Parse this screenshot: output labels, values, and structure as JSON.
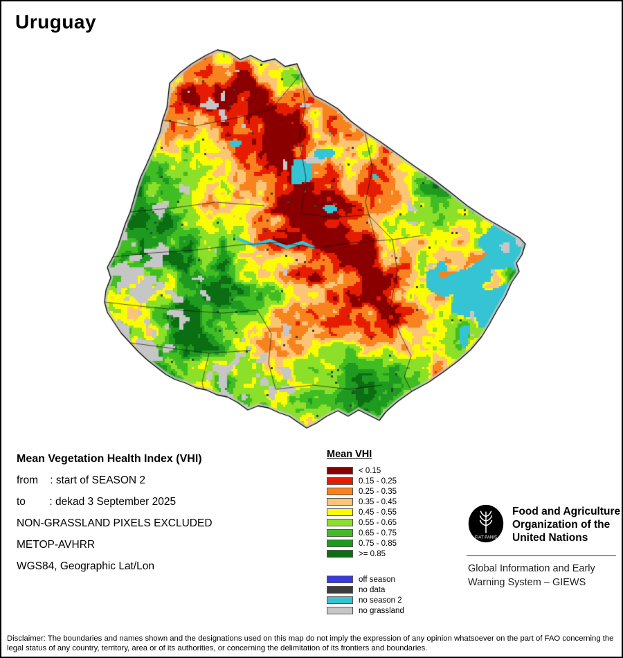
{
  "title": "Uruguay",
  "info": {
    "heading": "Mean Vegetation Health Index (VHI)",
    "lines": [
      "from    : start of SEASON 2",
      "to        : dekad 3 September 2025",
      "NON-GRASSLAND PIXELS EXCLUDED",
      "METOP-AVHRR",
      "WGS84, Geographic Lat/Lon"
    ]
  },
  "legend": {
    "title": "Mean VHI",
    "classes": [
      {
        "label": "< 0.15",
        "color": "#8a0000"
      },
      {
        "label": "0.15 - 0.25",
        "color": "#e61c00"
      },
      {
        "label": "0.25 - 0.35",
        "color": "#f8821e"
      },
      {
        "label": "0.35 - 0.45",
        "color": "#fcc576"
      },
      {
        "label": "0.45 - 0.55",
        "color": "#fcfc00"
      },
      {
        "label": "0.55 - 0.65",
        "color": "#8ce02a"
      },
      {
        "label": "0.65 - 0.75",
        "color": "#41bd24"
      },
      {
        "label": "0.75 - 0.85",
        "color": "#1e9a20"
      },
      {
        "label": ">= 0.85",
        "color": "#0b6e12"
      }
    ],
    "extra": [
      {
        "label": "off season",
        "color": "#3a3ada"
      },
      {
        "label": "no data",
        "color": "#3c3c3c"
      },
      {
        "label": "no season 2",
        "color": "#35c4d4"
      },
      {
        "label": "no grassland",
        "color": "#c6c6c6"
      }
    ]
  },
  "footer": {
    "org_lines": [
      "Food and Agriculture",
      "Organization of the",
      "United Nations"
    ],
    "fiat_panis": "FIAT PANIS",
    "giews_lines": [
      "Global Information and Early",
      "Warning System – GIEWS"
    ]
  },
  "disclaimer": "Disclaimer: The boundaries and names shown and the designations used on this map do not imply the expression of any opinion whatsoever on the part of FAO concerning the legal status of any country, territory, area or of its authorities, or concerning the delimitation of its frontiers and boundaries."
}
